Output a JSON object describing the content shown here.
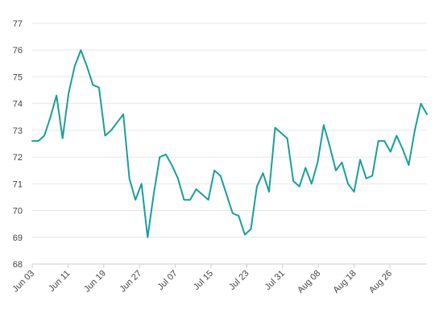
{
  "chart_data": {
    "type": "line",
    "title": "",
    "xlabel": "",
    "ylabel": "",
    "ylim": [
      68,
      77
    ],
    "yticks": [
      68,
      69,
      70,
      71,
      72,
      73,
      74,
      75,
      76,
      77
    ],
    "xtick_labels": [
      "Jun 03",
      "Jun 11",
      "Jun 19",
      "Jun 27",
      "Jul 07",
      "Jul 15",
      "Jul 23",
      "Jul 31",
      "Aug 08",
      "Aug 18",
      "Aug 26"
    ],
    "grid": true,
    "legend": "none",
    "colors": {
      "series": "#1a9e9a",
      "grid": "#e6e6e6",
      "axis": "#cccccc",
      "text": "#444444"
    },
    "series": [
      {
        "values": [
          72.6,
          72.6,
          72.8,
          73.5,
          74.3,
          72.7,
          74.4,
          75.4,
          76.0,
          75.4,
          74.7,
          74.6,
          72.8,
          73.0,
          73.3,
          73.6,
          71.2,
          70.4,
          71.0,
          69.0,
          70.6,
          72.0,
          72.1,
          71.7,
          71.2,
          70.4,
          70.4,
          70.8,
          70.6,
          70.4,
          71.5,
          71.3,
          70.6,
          69.9,
          69.8,
          69.1,
          69.3,
          70.9,
          71.4,
          70.7,
          73.1,
          72.9,
          72.7,
          71.1,
          70.9,
          71.6,
          71.0,
          71.8,
          73.2,
          72.4,
          71.5,
          71.8,
          71.0,
          70.7,
          71.9,
          71.2,
          71.3,
          72.6,
          72.6,
          72.2,
          72.8,
          72.3,
          71.7,
          73.0,
          74.0,
          73.6
        ]
      }
    ]
  }
}
